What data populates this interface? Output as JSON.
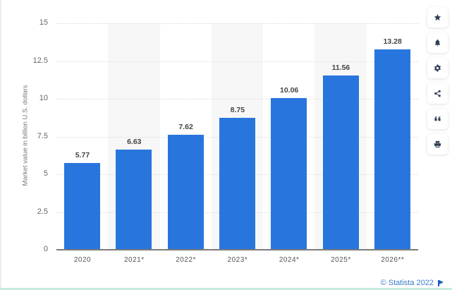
{
  "chart_data": {
    "type": "bar",
    "title": "",
    "xlabel": "",
    "ylabel": "Market value in billion U.S. dollars",
    "categories": [
      "2020",
      "2021*",
      "2022*",
      "2023*",
      "2024*",
      "2025*",
      "2026**"
    ],
    "values": [
      5.77,
      6.63,
      7.62,
      8.75,
      10.06,
      11.56,
      13.28
    ],
    "value_labels": [
      "5.77",
      "6.63",
      "7.62",
      "8.75",
      "10.06",
      "11.56",
      "13.28"
    ],
    "ylim": [
      0,
      15
    ],
    "yticks": [
      "0",
      "2.5",
      "5",
      "7.5",
      "10",
      "12.5",
      "15"
    ],
    "grid": true,
    "legend": null,
    "bar_color": "#2876dd"
  },
  "credit": "© Statista 2022",
  "toolbar": [
    {
      "name": "star-icon",
      "label": "Favorite"
    },
    {
      "name": "bell-icon",
      "label": "Notifications"
    },
    {
      "name": "gear-icon",
      "label": "Settings"
    },
    {
      "name": "share-icon",
      "label": "Share"
    },
    {
      "name": "quote-icon",
      "label": "Cite"
    },
    {
      "name": "print-icon",
      "label": "Print"
    }
  ]
}
